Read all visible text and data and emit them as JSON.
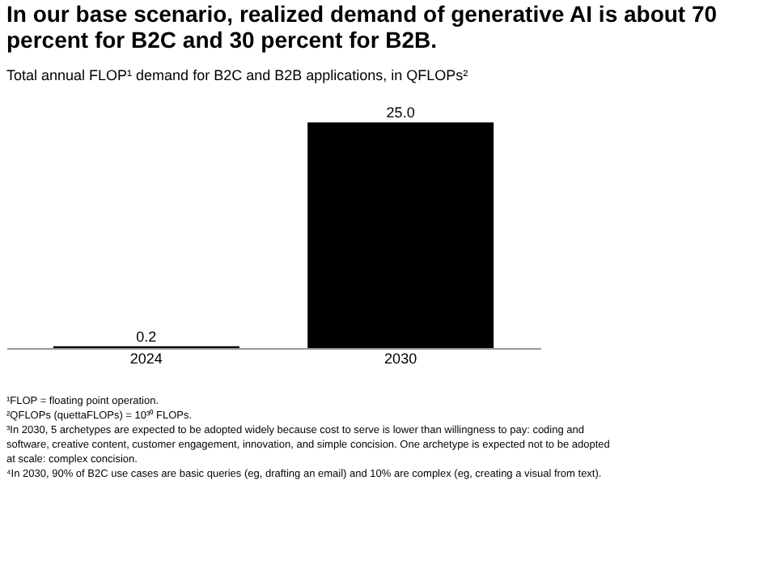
{
  "chart_data": {
    "type": "bar",
    "title": "In our base scenario, realized demand of generative AI is about 70 percent for B2C and 30 percent for B2B.",
    "subtitle": "Total annual FLOP¹ demand for B2C and B2B applications, in QFLOPs²",
    "categories": [
      "2024",
      "2030"
    ],
    "values": [
      0.2,
      25.0
    ],
    "color": "#000000",
    "value_labels": [
      "0.2",
      "25.0"
    ],
    "tick_labels": "x",
    "grid": false,
    "annotations": [
      "¹FLOP = floating point operation.",
      "²QFLOPs (quettaFLOPs) = 10³⁰ FLOPs.",
      "³In 2030, 5 archetypes are expected to be adopted widely because cost to serve is lower than willingness to pay: coding and software, creative content, customer engagement, innovation, and simple concision. One archetype is expected not to be adopted at scale: complex concision.",
      "⁴In 2030, 90% of B2C use cases are basic queries (eg, drafting an email) and 10% are complex (eg, creating a visual from text)."
    ]
  }
}
